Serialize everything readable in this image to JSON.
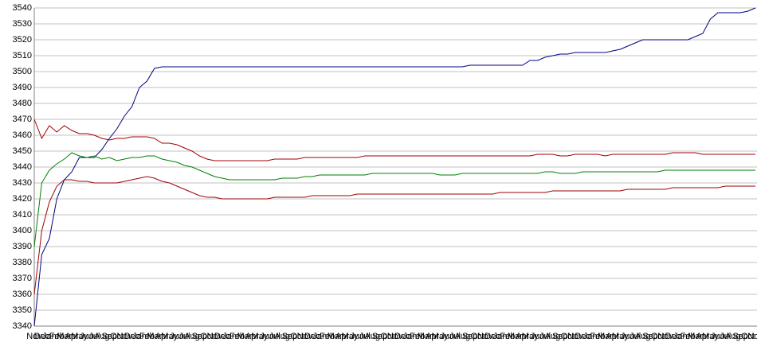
{
  "chart_data": {
    "type": "line",
    "categories": [
      "Nov",
      "Dec",
      "Jan",
      "Feb",
      "Mar",
      "Apr",
      "May",
      "Jun",
      "Jul",
      "Aug",
      "Sep",
      "Oct",
      "Nov",
      "Dec",
      "Jan",
      "Feb",
      "Mar",
      "Apr",
      "May",
      "Jun",
      "Jul",
      "Aug",
      "Sep",
      "Oct",
      "Nov",
      "Dec",
      "Jan",
      "Feb",
      "Mar",
      "Apr",
      "May",
      "Jun",
      "Jul",
      "Aug",
      "Sep",
      "Oct",
      "Nov",
      "Dec",
      "Jan",
      "Feb",
      "Mar",
      "Apr",
      "May",
      "Jun",
      "Jul",
      "Aug",
      "Sep",
      "Oct",
      "Nov",
      "Dec",
      "Jan",
      "Feb",
      "Mar",
      "Apr",
      "May",
      "Jun",
      "Jul",
      "Aug",
      "Sep",
      "Oct",
      "Nov",
      "Dec",
      "Jan",
      "Feb",
      "Mar",
      "Apr",
      "May",
      "Jun",
      "Jul",
      "Aug",
      "Sep",
      "Oct",
      "Nov",
      "Dec",
      "Jan",
      "Feb",
      "Mar",
      "Apr",
      "May",
      "Jun",
      "Jul",
      "Aug",
      "Sep",
      "Oct",
      "Nov",
      "Dec",
      "Jan",
      "Feb",
      "Mar",
      "Apr",
      "May",
      "Jun",
      "Jul",
      "Aug",
      "Sep",
      "Oct",
      "Nov"
    ],
    "series": [
      {
        "color": "#000080",
        "values": [
          3340,
          3385,
          3395,
          3420,
          3432,
          3437,
          3446,
          3446,
          3446,
          3451,
          3458,
          3464,
          3472,
          3478,
          3490,
          3494,
          3502,
          3503,
          3503,
          3503,
          3503,
          3503,
          3503,
          3503,
          3503,
          3503,
          3503,
          3503,
          3503,
          3503,
          3503,
          3503,
          3503,
          3503,
          3503,
          3503,
          3503,
          3503,
          3503,
          3503,
          3503,
          3503,
          3503,
          3503,
          3503,
          3503,
          3503,
          3503,
          3503,
          3503,
          3503,
          3503,
          3503,
          3503,
          3503,
          3503,
          3503,
          3503,
          3504,
          3504,
          3504,
          3504,
          3504,
          3504,
          3504,
          3504,
          3507,
          3507,
          3509,
          3510,
          3511,
          3511,
          3512,
          3512,
          3512,
          3512,
          3512,
          3513,
          3514,
          3516,
          3518,
          3520,
          3520,
          3520,
          3520,
          3520,
          3520,
          3520,
          3522,
          3524,
          3533,
          3537,
          3537,
          3537,
          3537,
          3538,
          3540
        ]
      },
      {
        "color": "#a00000",
        "values": [
          3470,
          3458,
          3466,
          3462,
          3466,
          3463,
          3461,
          3461,
          3460,
          3458,
          3457,
          3458,
          3458,
          3459,
          3459,
          3459,
          3458,
          3455,
          3455,
          3454,
          3452,
          3450,
          3447,
          3445,
          3444,
          3444,
          3444,
          3444,
          3444,
          3444,
          3444,
          3444,
          3445,
          3445,
          3445,
          3445,
          3446,
          3446,
          3446,
          3446,
          3446,
          3446,
          3446,
          3446,
          3447,
          3447,
          3447,
          3447,
          3447,
          3447,
          3447,
          3447,
          3447,
          3447,
          3447,
          3447,
          3447,
          3447,
          3447,
          3447,
          3447,
          3447,
          3447,
          3447,
          3447,
          3447,
          3447,
          3448,
          3448,
          3448,
          3447,
          3447,
          3448,
          3448,
          3448,
          3448,
          3447,
          3448,
          3448,
          3448,
          3448,
          3448,
          3448,
          3448,
          3448,
          3449,
          3449,
          3449,
          3449,
          3448,
          3448,
          3448,
          3448,
          3448,
          3448,
          3448,
          3448
        ]
      },
      {
        "color": "#008000",
        "values": [
          3390,
          3430,
          3438,
          3442,
          3445,
          3449,
          3447,
          3446,
          3447,
          3445,
          3446,
          3444,
          3445,
          3446,
          3446,
          3447,
          3447,
          3445,
          3444,
          3443,
          3441,
          3440,
          3438,
          3436,
          3434,
          3433,
          3432,
          3432,
          3432,
          3432,
          3432,
          3432,
          3432,
          3433,
          3433,
          3433,
          3434,
          3434,
          3435,
          3435,
          3435,
          3435,
          3435,
          3435,
          3435,
          3436,
          3436,
          3436,
          3436,
          3436,
          3436,
          3436,
          3436,
          3436,
          3435,
          3435,
          3435,
          3436,
          3436,
          3436,
          3436,
          3436,
          3436,
          3436,
          3436,
          3436,
          3436,
          3436,
          3437,
          3437,
          3436,
          3436,
          3436,
          3437,
          3437,
          3437,
          3437,
          3437,
          3437,
          3437,
          3437,
          3437,
          3437,
          3437,
          3438,
          3438,
          3438,
          3438,
          3438,
          3438,
          3438,
          3438,
          3438,
          3438,
          3438,
          3438,
          3438
        ]
      },
      {
        "color": "#a00000",
        "values": [
          3360,
          3400,
          3418,
          3428,
          3432,
          3432,
          3431,
          3431,
          3430,
          3430,
          3430,
          3430,
          3431,
          3432,
          3433,
          3434,
          3433,
          3431,
          3430,
          3428,
          3426,
          3424,
          3422,
          3421,
          3421,
          3420,
          3420,
          3420,
          3420,
          3420,
          3420,
          3420,
          3421,
          3421,
          3421,
          3421,
          3421,
          3422,
          3422,
          3422,
          3422,
          3422,
          3422,
          3423,
          3423,
          3423,
          3423,
          3423,
          3423,
          3423,
          3423,
          3423,
          3423,
          3423,
          3423,
          3423,
          3423,
          3423,
          3423,
          3423,
          3423,
          3423,
          3424,
          3424,
          3424,
          3424,
          3424,
          3424,
          3424,
          3425,
          3425,
          3425,
          3425,
          3425,
          3425,
          3425,
          3425,
          3425,
          3425,
          3426,
          3426,
          3426,
          3426,
          3426,
          3426,
          3427,
          3427,
          3427,
          3427,
          3427,
          3427,
          3427,
          3428,
          3428,
          3428,
          3428,
          3428
        ]
      }
    ],
    "ylim": [
      3340,
      3540
    ],
    "yticks": [
      3340,
      3350,
      3360,
      3370,
      3380,
      3390,
      3400,
      3410,
      3420,
      3430,
      3440,
      3450,
      3460,
      3470,
      3480,
      3490,
      3500,
      3510,
      3520,
      3530,
      3540
    ],
    "grid": true
  }
}
